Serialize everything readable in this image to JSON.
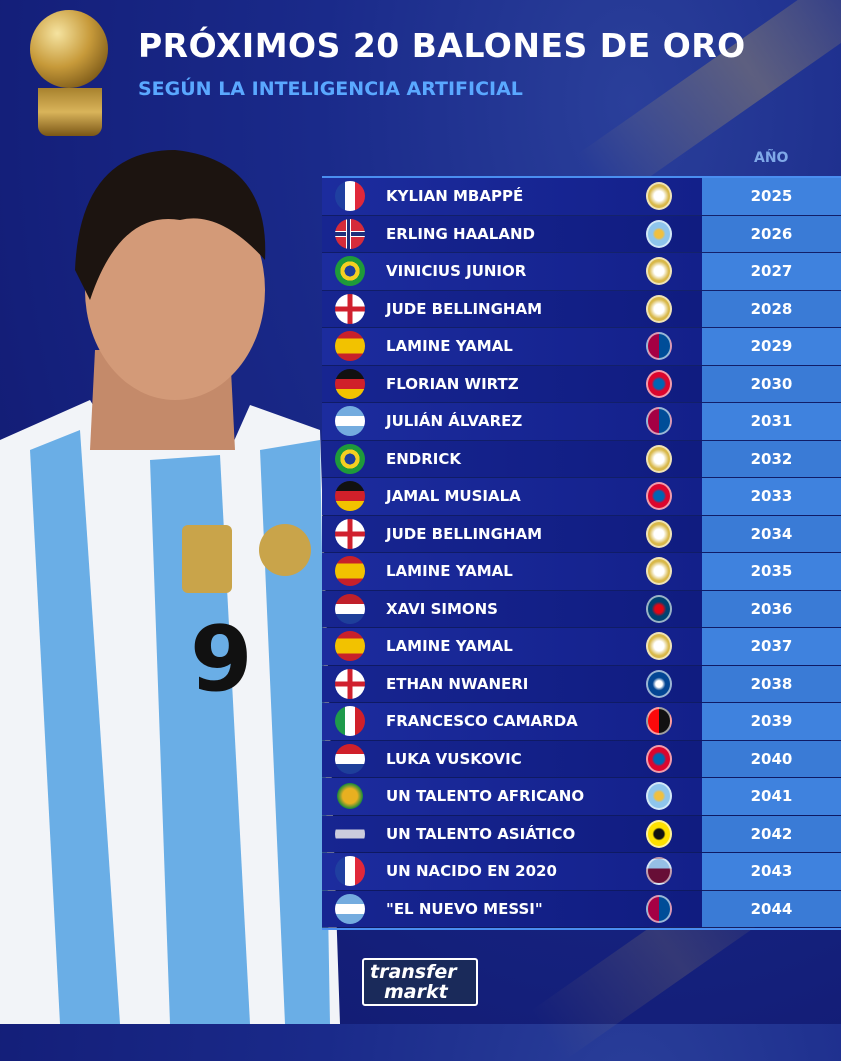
{
  "header": {
    "title": "PRÓXIMOS 20 BALONES DE ORO",
    "subtitle": "SEGÚN LA INTELIGENCIA ARTIFICIAL",
    "year_column": "AÑO"
  },
  "rows": [
    {
      "flag": "france",
      "name": "KYLIAN MBAPPÉ",
      "club": "real-madrid",
      "year": "2025"
    },
    {
      "flag": "norway",
      "name": "ERLING HAALAND",
      "club": "manchester-city",
      "year": "2026"
    },
    {
      "flag": "brazil",
      "name": "VINICIUS JUNIOR",
      "club": "real-madrid",
      "year": "2027"
    },
    {
      "flag": "england",
      "name": "JUDE BELLINGHAM",
      "club": "real-madrid",
      "year": "2028"
    },
    {
      "flag": "spain",
      "name": "LAMINE YAMAL",
      "club": "barcelona",
      "year": "2029"
    },
    {
      "flag": "germany",
      "name": "FLORIAN WIRTZ",
      "club": "bayern",
      "year": "2030"
    },
    {
      "flag": "argentina",
      "name": "JULIÁN ÁLVAREZ",
      "club": "barcelona",
      "year": "2031"
    },
    {
      "flag": "brazil",
      "name": "ENDRICK",
      "club": "real-madrid",
      "year": "2032"
    },
    {
      "flag": "germany",
      "name": "JAMAL MUSIALA",
      "club": "bayern",
      "year": "2033"
    },
    {
      "flag": "england",
      "name": "JUDE BELLINGHAM",
      "club": "real-madrid",
      "year": "2034"
    },
    {
      "flag": "spain",
      "name": "LAMINE YAMAL",
      "club": "real-madrid",
      "year": "2035"
    },
    {
      "flag": "netherlands",
      "name": "XAVI SIMONS",
      "club": "psg",
      "year": "2036"
    },
    {
      "flag": "spain",
      "name": "LAMINE YAMAL",
      "club": "real-madrid",
      "year": "2037"
    },
    {
      "flag": "england",
      "name": "ETHAN NWANERI",
      "club": "chelsea",
      "year": "2038"
    },
    {
      "flag": "italy",
      "name": "FRANCESCO CAMARDA",
      "club": "milan",
      "year": "2039"
    },
    {
      "flag": "croatia",
      "name": "LUKA VUSKOVIC",
      "club": "bayern",
      "year": "2040"
    },
    {
      "flag": "caf",
      "name": "UN TALENTO AFRICANO",
      "club": "manchester-city",
      "year": "2041"
    },
    {
      "flag": "afc",
      "name": "UN TALENTO ASIÁTICO",
      "club": "dortmund",
      "year": "2042"
    },
    {
      "flag": "france",
      "name": "UN NACIDO EN 2020",
      "club": "aston-villa",
      "year": "2043"
    },
    {
      "flag": "argentina",
      "name": "\"EL NUEVO MESSI\"",
      "club": "barcelona",
      "year": "2044"
    }
  ],
  "logo": {
    "line1": "transfer",
    "line2": "markt"
  },
  "colors": {
    "year_column": "#3a7bd6",
    "subtitle": "#5aa8ff",
    "background": "#141f7a"
  }
}
